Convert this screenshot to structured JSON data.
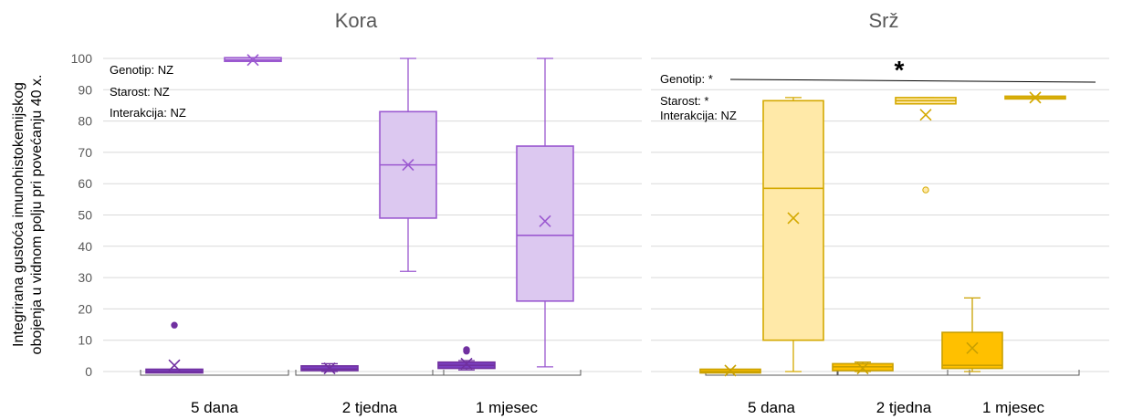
{
  "chart_data": [
    {
      "type": "box",
      "title": "Kora",
      "ylabel_lines": [
        "Integrirana gustoća imunohistokemijskog",
        "obojenja u vidnom polju pri povećanju 40 x."
      ],
      "ylim": [
        0,
        100
      ],
      "yticks": [
        0,
        10,
        20,
        30,
        40,
        50,
        60,
        70,
        80,
        90,
        100
      ],
      "grid": true,
      "groups": [
        "5 dana",
        "2 tjedna",
        "1 mjesec"
      ],
      "annotation": [
        "Genotip: NZ",
        "Starost: NZ",
        "Interakcija: NZ"
      ],
      "series_colors": {
        "dark_stroke": "#7030a0",
        "dark_fill": "#7b3fbf",
        "light_stroke": "#9b59d0",
        "light_fill": "#dcc8f0"
      },
      "boxes": [
        {
          "group": 0,
          "slot": 0,
          "style": "dark",
          "min": 0,
          "q1": 0,
          "median": 0,
          "q3": 0.3,
          "max": 0.3,
          "mean": 2,
          "outliers": [
            14.8
          ]
        },
        {
          "group": 0,
          "slot": 1,
          "style": "light",
          "min": 99.5,
          "q1": 99.5,
          "median": 99.5,
          "q3": 99.8,
          "max": 99.8,
          "mean": 99.5,
          "outliers": []
        },
        {
          "group": 1,
          "slot": 0,
          "style": "dark",
          "min": 0,
          "q1": 0.3,
          "median": 0.8,
          "q3": 1.8,
          "max": 2.5,
          "mean": 1,
          "outliers": []
        },
        {
          "group": 1,
          "slot": 1,
          "style": "light",
          "min": 32,
          "q1": 49,
          "median": 66,
          "q3": 83,
          "max": 100,
          "mean": 66,
          "outliers": []
        },
        {
          "group": 2,
          "slot": 0,
          "style": "dark",
          "min": 0.5,
          "q1": 1,
          "median": 2,
          "q3": 3,
          "max": 3.5,
          "mean": 2.5,
          "outliers": [
            6.5,
            7
          ]
        },
        {
          "group": 2,
          "slot": 1,
          "style": "light",
          "min": 1.5,
          "q1": 22.5,
          "median": 43.5,
          "q3": 72,
          "max": 100,
          "mean": 48,
          "outliers": []
        }
      ]
    },
    {
      "type": "box",
      "title": "Srž",
      "ylim": [
        0,
        100
      ],
      "grid": true,
      "groups": [
        "5 dana",
        "2 tjedna",
        "1 mjesec"
      ],
      "annotation": [
        "Genotip: *",
        "Starost: *",
        "Interakcija: NZ"
      ],
      "significance_marker": "*",
      "series_colors": {
        "dark_stroke": "#c9a000",
        "dark_fill": "#ffc000",
        "light_stroke": "#d4a900",
        "light_fill": "#ffe9a8"
      },
      "boxes": [
        {
          "group": 0,
          "slot": 0,
          "style": "dark",
          "min": 0,
          "q1": 0,
          "median": 0,
          "q3": 0.3,
          "max": 0.3,
          "mean": 0.3,
          "outliers": []
        },
        {
          "group": 0,
          "slot": 1,
          "style": "light",
          "min": 0,
          "q1": 10,
          "median": 58.5,
          "q3": 86.5,
          "max": 87.5,
          "mean": 49,
          "outliers": []
        },
        {
          "group": 1,
          "slot": 0,
          "style": "dark",
          "min": 0,
          "q1": 0.3,
          "median": 1.5,
          "q3": 2.5,
          "max": 3,
          "mean": 1,
          "outliers": []
        },
        {
          "group": 1,
          "slot": 1,
          "style": "light",
          "min": 85.5,
          "q1": 85.5,
          "median": 86.5,
          "q3": 87.5,
          "max": 87.5,
          "mean": 82,
          "outliers": [
            58
          ]
        },
        {
          "group": 2,
          "slot": 0,
          "style": "dark",
          "min": 0,
          "q1": 1,
          "median": 2,
          "q3": 12.5,
          "max": 23.5,
          "mean": 7.5,
          "outliers": []
        },
        {
          "group": 2,
          "slot": 1,
          "style": "light",
          "min": 87.5,
          "q1": 87.5,
          "median": 87.5,
          "q3": 87.5,
          "max": 87.5,
          "mean": 87.5,
          "outliers": []
        }
      ]
    }
  ]
}
